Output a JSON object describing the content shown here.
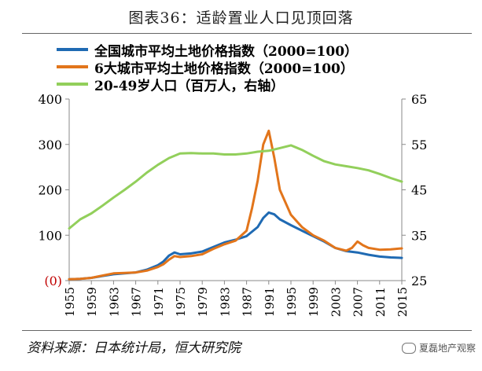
{
  "figure_title": "图表36：适龄置业人口见顶回落",
  "source_note": "资料来源：日本统计局，恒大研究院",
  "watermark": "夏磊地产观察",
  "colors": {
    "blue": "#1F6AB3",
    "orange": "#E2751B",
    "green": "#92CF5B",
    "zero_label": "#C00000"
  },
  "chart_data": {
    "type": "line",
    "title": "适龄置业人口见顶回落",
    "xlabel": "",
    "ylabel_left": "",
    "ylabel_right": "",
    "xlim": [
      1955,
      2015
    ],
    "ylim_left": [
      0,
      400
    ],
    "ylim_right": [
      25,
      65
    ],
    "left_ticks": [
      {
        "value": 0,
        "label": "(0)"
      },
      {
        "value": 100,
        "label": "100"
      },
      {
        "value": 200,
        "label": "200"
      },
      {
        "value": 300,
        "label": "300"
      },
      {
        "value": 400,
        "label": "400"
      }
    ],
    "right_ticks": [
      {
        "value": 25,
        "label": "25"
      },
      {
        "value": 35,
        "label": "35"
      },
      {
        "value": 45,
        "label": "45"
      },
      {
        "value": 55,
        "label": "55"
      },
      {
        "value": 65,
        "label": "65"
      }
    ],
    "x_ticks": [
      "1955",
      "1959",
      "1963",
      "1967",
      "1971",
      "1975",
      "1979",
      "1983",
      "1987",
      "1991",
      "1995",
      "1999",
      "2003",
      "2007",
      "2011",
      "2015"
    ],
    "legend_position": "top-left",
    "series": [
      {
        "name": "全国城市平均土地价格指数（2000=100）",
        "axis": "left",
        "color": "#1F6AB3",
        "x": [
          1955,
          1957,
          1959,
          1961,
          1963,
          1965,
          1967,
          1969,
          1971,
          1972,
          1973,
          1974,
          1975,
          1977,
          1979,
          1981,
          1983,
          1985,
          1987,
          1989,
          1990,
          1991,
          1992,
          1993,
          1995,
          1997,
          1999,
          2001,
          2003,
          2005,
          2007,
          2009,
          2011,
          2013,
          2015
        ],
        "values": [
          3,
          4,
          6,
          10,
          14,
          16,
          18,
          24,
          34,
          42,
          55,
          62,
          58,
          60,
          64,
          74,
          84,
          90,
          98,
          118,
          138,
          150,
          146,
          135,
          122,
          110,
          98,
          86,
          72,
          65,
          62,
          57,
          53,
          51,
          50
        ]
      },
      {
        "name": "6大城市平均土地价格指数（2000=100）",
        "axis": "left",
        "color": "#E2751B",
        "x": [
          1955,
          1957,
          1959,
          1961,
          1963,
          1965,
          1967,
          1969,
          1971,
          1972,
          1973,
          1974,
          1975,
          1977,
          1979,
          1981,
          1983,
          1985,
          1987,
          1988,
          1989,
          1990,
          1991,
          1992,
          1993,
          1995,
          1997,
          1999,
          2001,
          2003,
          2005,
          2006,
          2007,
          2008,
          2009,
          2011,
          2013,
          2015
        ],
        "values": [
          3,
          4,
          6,
          11,
          16,
          17,
          18,
          22,
          30,
          36,
          46,
          54,
          52,
          54,
          58,
          70,
          80,
          88,
          110,
          160,
          220,
          300,
          330,
          270,
          200,
          145,
          118,
          100,
          88,
          72,
          66,
          72,
          86,
          78,
          72,
          68,
          69,
          71
        ]
      },
      {
        "name": "20-49岁人口（百万人，右轴）",
        "axis": "right",
        "color": "#92CF5B",
        "x": [
          1955,
          1957,
          1959,
          1961,
          1963,
          1965,
          1967,
          1969,
          1971,
          1973,
          1975,
          1977,
          1979,
          1981,
          1983,
          1985,
          1987,
          1989,
          1991,
          1993,
          1995,
          1996,
          1997,
          1999,
          2001,
          2003,
          2005,
          2007,
          2009,
          2011,
          2013,
          2015
        ],
        "values": [
          36.5,
          38.5,
          39.8,
          41.5,
          43.3,
          45.0,
          46.8,
          48.8,
          50.5,
          52.0,
          53.0,
          53.1,
          53.0,
          53.0,
          52.8,
          52.8,
          53.0,
          53.4,
          53.6,
          54.2,
          54.8,
          54.3,
          53.8,
          52.5,
          51.3,
          50.6,
          50.2,
          49.8,
          49.3,
          48.5,
          47.6,
          46.8
        ]
      }
    ]
  }
}
